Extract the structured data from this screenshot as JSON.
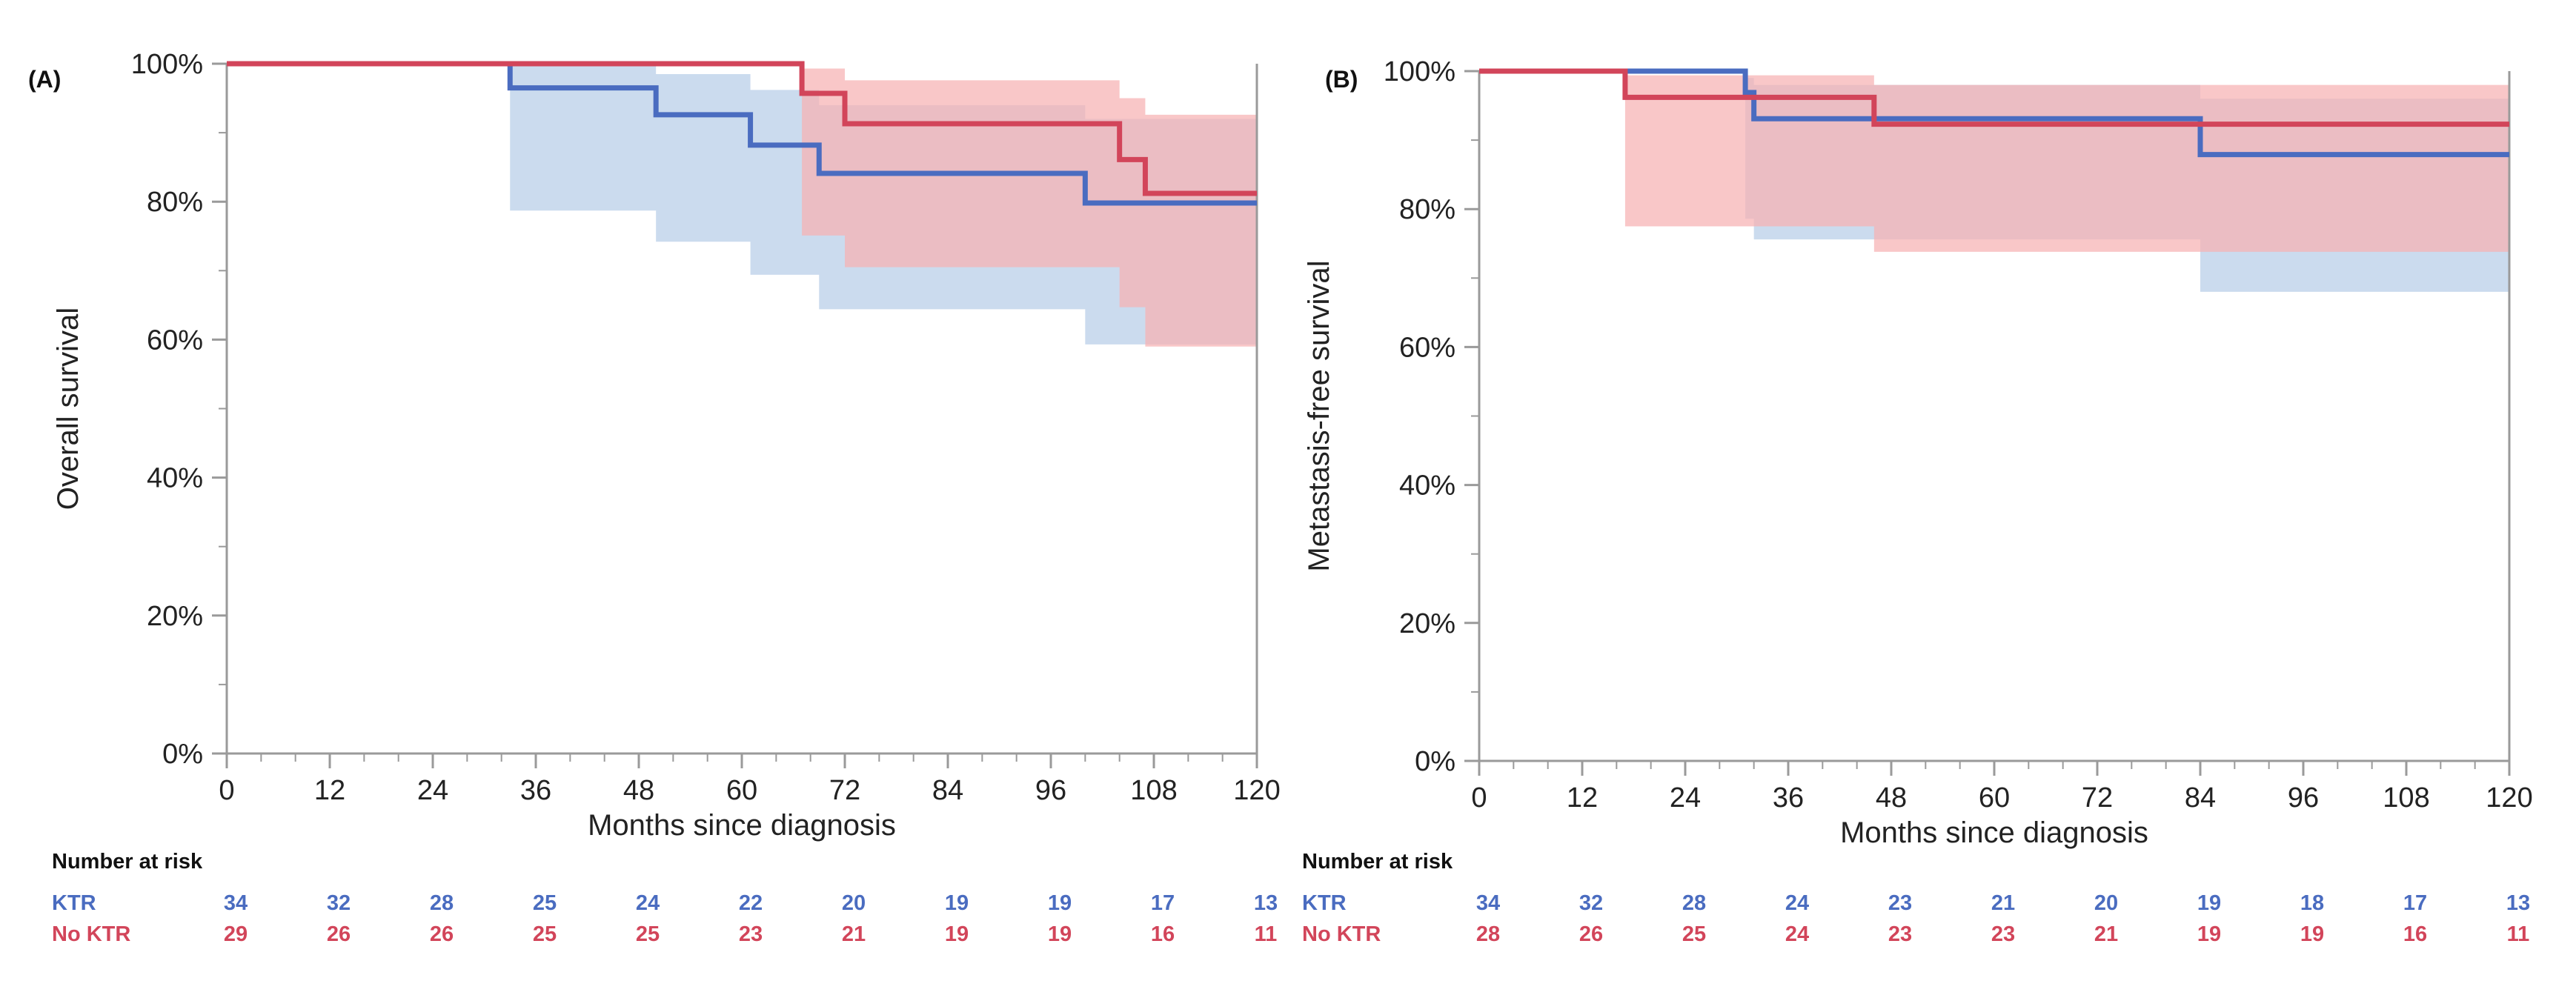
{
  "colors": {
    "ktr": "#4a6cc0",
    "no_ktr": "#d2455a",
    "ktr_band": "#b7cde8",
    "no_ktr_band": "#f7b1b3",
    "axis": "#9a9a9a"
  },
  "chart_data": [
    {
      "type": "line",
      "subtype": "kaplan-meier-step",
      "panel_label": "(A)",
      "xlabel": "Months since diagnosis",
      "ylabel": "Overall survival",
      "xlim": [
        0,
        120
      ],
      "ylim": [
        0,
        100
      ],
      "xticks": [
        0,
        12,
        24,
        36,
        48,
        60,
        72,
        84,
        96,
        108,
        120
      ],
      "yticks": [
        0,
        20,
        40,
        60,
        80,
        100
      ],
      "ytick_labels": [
        "0%",
        "20%",
        "40%",
        "60%",
        "80%",
        "100%"
      ],
      "series": [
        {
          "name": "KTR",
          "color_key": "ktr",
          "band_key": "ktr_band",
          "x": [
            0,
            33,
            50,
            61,
            69,
            100,
            120
          ],
          "y": [
            100,
            96.5,
            92.6,
            88.2,
            84.1,
            79.8,
            79.8
          ],
          "ci_lower": [
            100,
            78.7,
            74.2,
            69.4,
            64.4,
            59.3,
            59.3
          ],
          "ci_upper": [
            100,
            100,
            98.5,
            96.2,
            94.0,
            92.0,
            92.0
          ]
        },
        {
          "name": "No KTR",
          "color_key": "no_ktr",
          "band_key": "no_ktr_band",
          "x": [
            0,
            67,
            72,
            104,
            107,
            120
          ],
          "y": [
            100,
            95.7,
            91.3,
            86.1,
            81.2,
            81.2
          ],
          "ci_lower": [
            100,
            75.1,
            70.5,
            64.7,
            59.0,
            59.0
          ],
          "ci_upper": [
            100,
            99.3,
            97.6,
            95.0,
            92.6,
            92.6
          ]
        }
      ],
      "risk_table": {
        "title": "Number at risk",
        "times": [
          0,
          12,
          24,
          36,
          48,
          60,
          72,
          84,
          96,
          108,
          120
        ],
        "groups": [
          {
            "name": "KTR",
            "color_key": "ktr",
            "values": [
              "34",
              "32",
              "28",
              "25",
              "24",
              "22",
              "20",
              "19",
              "19",
              "17",
              "13"
            ]
          },
          {
            "name": "No KTR",
            "color_key": "no_ktr",
            "values": [
              "29",
              "26",
              "26",
              "25",
              "25",
              "23",
              "21",
              "19",
              "19",
              "16",
              "11"
            ]
          }
        ]
      }
    },
    {
      "type": "line",
      "subtype": "kaplan-meier-step",
      "panel_label": "(B)",
      "xlabel": "Months since diagnosis",
      "ylabel": "Metastasis-free survival",
      "xlim": [
        0,
        120
      ],
      "ylim": [
        0,
        100
      ],
      "xticks": [
        0,
        12,
        24,
        36,
        48,
        60,
        72,
        84,
        96,
        108,
        120
      ],
      "yticks": [
        0,
        20,
        40,
        60,
        80,
        100
      ],
      "ytick_labels": [
        "0%",
        "20%",
        "40%",
        "60%",
        "80%",
        "100%"
      ],
      "series": [
        {
          "name": "KTR",
          "color_key": "ktr",
          "band_key": "ktr_band",
          "x": [
            0,
            31,
            32,
            84,
            120
          ],
          "y": [
            100,
            96.9,
            93.1,
            87.9,
            87.9
          ],
          "ci_lower": [
            100,
            78.6,
            75.6,
            68.0,
            68.0
          ],
          "ci_upper": [
            100,
            99.0,
            98.0,
            96.0,
            96.0
          ]
        },
        {
          "name": "No KTR",
          "color_key": "no_ktr",
          "band_key": "no_ktr_band",
          "x": [
            0,
            17,
            46,
            120
          ],
          "y": [
            100,
            96.2,
            92.3,
            92.3
          ],
          "ci_lower": [
            100,
            77.5,
            73.8,
            73.8
          ],
          "ci_upper": [
            100,
            99.4,
            98.0,
            98.0
          ]
        }
      ],
      "risk_table": {
        "title": "Number at risk",
        "times": [
          0,
          12,
          24,
          36,
          48,
          60,
          72,
          84,
          96,
          108,
          120
        ],
        "groups": [
          {
            "name": "KTR",
            "color_key": "ktr",
            "values": [
              "34",
              "32",
              "28",
              "24",
              "23",
              "21",
              "20",
              "19",
              "18",
              "17",
              "13"
            ]
          },
          {
            "name": "No KTR",
            "color_key": "no_ktr",
            "values": [
              "28",
              "26",
              "25",
              "24",
              "23",
              "23",
              "21",
              "19",
              "19",
              "16",
              "11"
            ]
          }
        ]
      }
    }
  ]
}
